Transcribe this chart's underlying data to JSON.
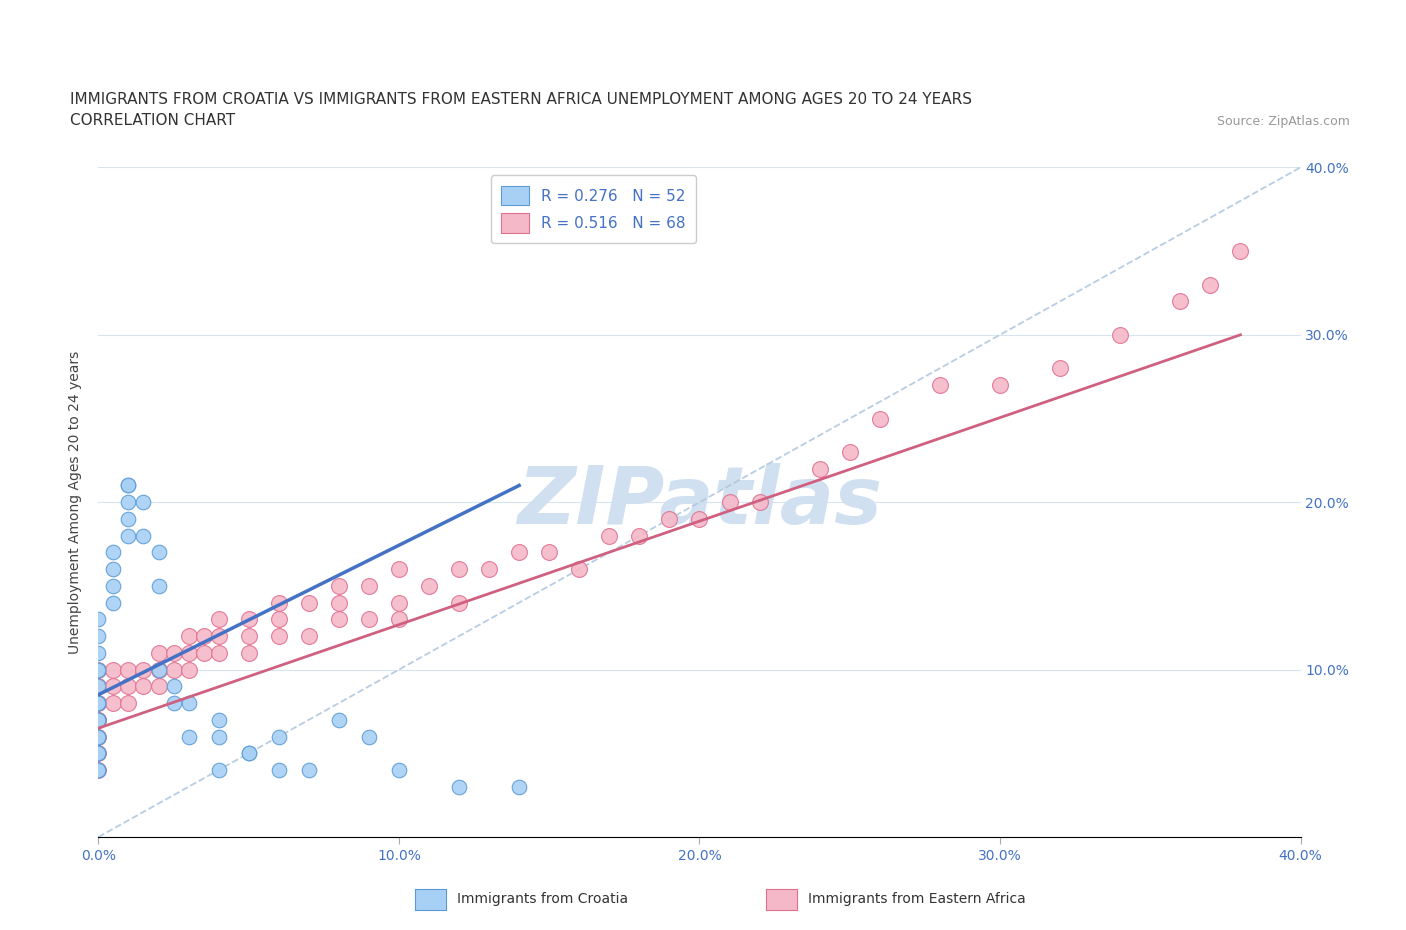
{
  "title_line1": "IMMIGRANTS FROM CROATIA VS IMMIGRANTS FROM EASTERN AFRICA UNEMPLOYMENT AMONG AGES 20 TO 24 YEARS",
  "title_line2": "CORRELATION CHART",
  "source_text": "Source: ZipAtlas.com",
  "ylabel": "Unemployment Among Ages 20 to 24 years",
  "x_min": 0.0,
  "x_max": 0.4,
  "y_min": 0.0,
  "y_max": 0.4,
  "x_ticks": [
    0.0,
    0.1,
    0.2,
    0.3,
    0.4
  ],
  "x_tick_labels": [
    "0.0%",
    "10.0%",
    "20.0%",
    "30.0%",
    "40.0%"
  ],
  "y_ticks_right": [
    0.1,
    0.2,
    0.3,
    0.4
  ],
  "y_tick_labels_right": [
    "10.0%",
    "20.0%",
    "30.0%",
    "40.0%"
  ],
  "croatia_color": "#a8d0f5",
  "eastern_africa_color": "#f5b8c8",
  "croatia_edge": "#5b9bd5",
  "eastern_africa_edge": "#e07090",
  "croatia_trend_color": "#4472c4",
  "eastern_africa_trend_color": "#d06080",
  "diagonal_color": "#b0c8e0",
  "watermark_color": "#d0e0f0",
  "watermark_text": "ZIPatlas",
  "legend_label_croatia": "R = 0.276   N = 52",
  "legend_label_eastern_africa": "R = 0.516   N = 68",
  "croatia_x": [
    0.0,
    0.0,
    0.0,
    0.0,
    0.0,
    0.0,
    0.0,
    0.0,
    0.0,
    0.0,
    0.0,
    0.0,
    0.0,
    0.0,
    0.0,
    0.0,
    0.0,
    0.0,
    0.0,
    0.0,
    0.0,
    0.005,
    0.005,
    0.005,
    0.005,
    0.01,
    0.01,
    0.01,
    0.01,
    0.01,
    0.015,
    0.015,
    0.02,
    0.02,
    0.02,
    0.025,
    0.025,
    0.03,
    0.03,
    0.04,
    0.04,
    0.04,
    0.05,
    0.05,
    0.06,
    0.06,
    0.07,
    0.08,
    0.09,
    0.1,
    0.12,
    0.14
  ],
  "croatia_y": [
    0.04,
    0.04,
    0.04,
    0.05,
    0.05,
    0.05,
    0.06,
    0.06,
    0.06,
    0.07,
    0.07,
    0.07,
    0.08,
    0.08,
    0.08,
    0.09,
    0.1,
    0.1,
    0.11,
    0.12,
    0.13,
    0.14,
    0.15,
    0.16,
    0.17,
    0.18,
    0.19,
    0.2,
    0.21,
    0.21,
    0.18,
    0.2,
    0.1,
    0.15,
    0.17,
    0.09,
    0.08,
    0.08,
    0.06,
    0.07,
    0.06,
    0.04,
    0.05,
    0.05,
    0.06,
    0.04,
    0.04,
    0.07,
    0.06,
    0.04,
    0.03,
    0.03
  ],
  "croatia_trend_x": [
    0.0,
    0.14
  ],
  "croatia_trend_y": [
    0.085,
    0.21
  ],
  "eastern_africa_x": [
    0.0,
    0.0,
    0.0,
    0.0,
    0.0,
    0.0,
    0.0,
    0.0,
    0.005,
    0.005,
    0.005,
    0.01,
    0.01,
    0.01,
    0.015,
    0.015,
    0.02,
    0.02,
    0.02,
    0.025,
    0.025,
    0.03,
    0.03,
    0.03,
    0.035,
    0.035,
    0.04,
    0.04,
    0.04,
    0.05,
    0.05,
    0.05,
    0.06,
    0.06,
    0.06,
    0.07,
    0.07,
    0.08,
    0.08,
    0.08,
    0.09,
    0.09,
    0.1,
    0.1,
    0.1,
    0.11,
    0.12,
    0.12,
    0.13,
    0.14,
    0.15,
    0.16,
    0.17,
    0.18,
    0.19,
    0.2,
    0.21,
    0.22,
    0.24,
    0.25,
    0.26,
    0.28,
    0.3,
    0.32,
    0.34,
    0.36,
    0.37,
    0.38
  ],
  "eastern_africa_y": [
    0.04,
    0.05,
    0.06,
    0.07,
    0.07,
    0.08,
    0.09,
    0.1,
    0.08,
    0.09,
    0.1,
    0.08,
    0.09,
    0.1,
    0.09,
    0.1,
    0.09,
    0.1,
    0.11,
    0.1,
    0.11,
    0.1,
    0.11,
    0.12,
    0.11,
    0.12,
    0.11,
    0.12,
    0.13,
    0.11,
    0.12,
    0.13,
    0.12,
    0.13,
    0.14,
    0.12,
    0.14,
    0.13,
    0.14,
    0.15,
    0.13,
    0.15,
    0.13,
    0.14,
    0.16,
    0.15,
    0.14,
    0.16,
    0.16,
    0.17,
    0.17,
    0.16,
    0.18,
    0.18,
    0.19,
    0.19,
    0.2,
    0.2,
    0.22,
    0.23,
    0.25,
    0.27,
    0.27,
    0.28,
    0.3,
    0.32,
    0.33,
    0.35
  ],
  "eastern_africa_trend_x": [
    0.0,
    0.38
  ],
  "eastern_africa_trend_y": [
    0.065,
    0.3
  ],
  "background_color": "#ffffff",
  "grid_color": "#d8e4f0",
  "title_fontsize": 11,
  "axis_label_fontsize": 10,
  "tick_fontsize": 10,
  "legend_fontsize": 11,
  "source_fontsize": 9
}
